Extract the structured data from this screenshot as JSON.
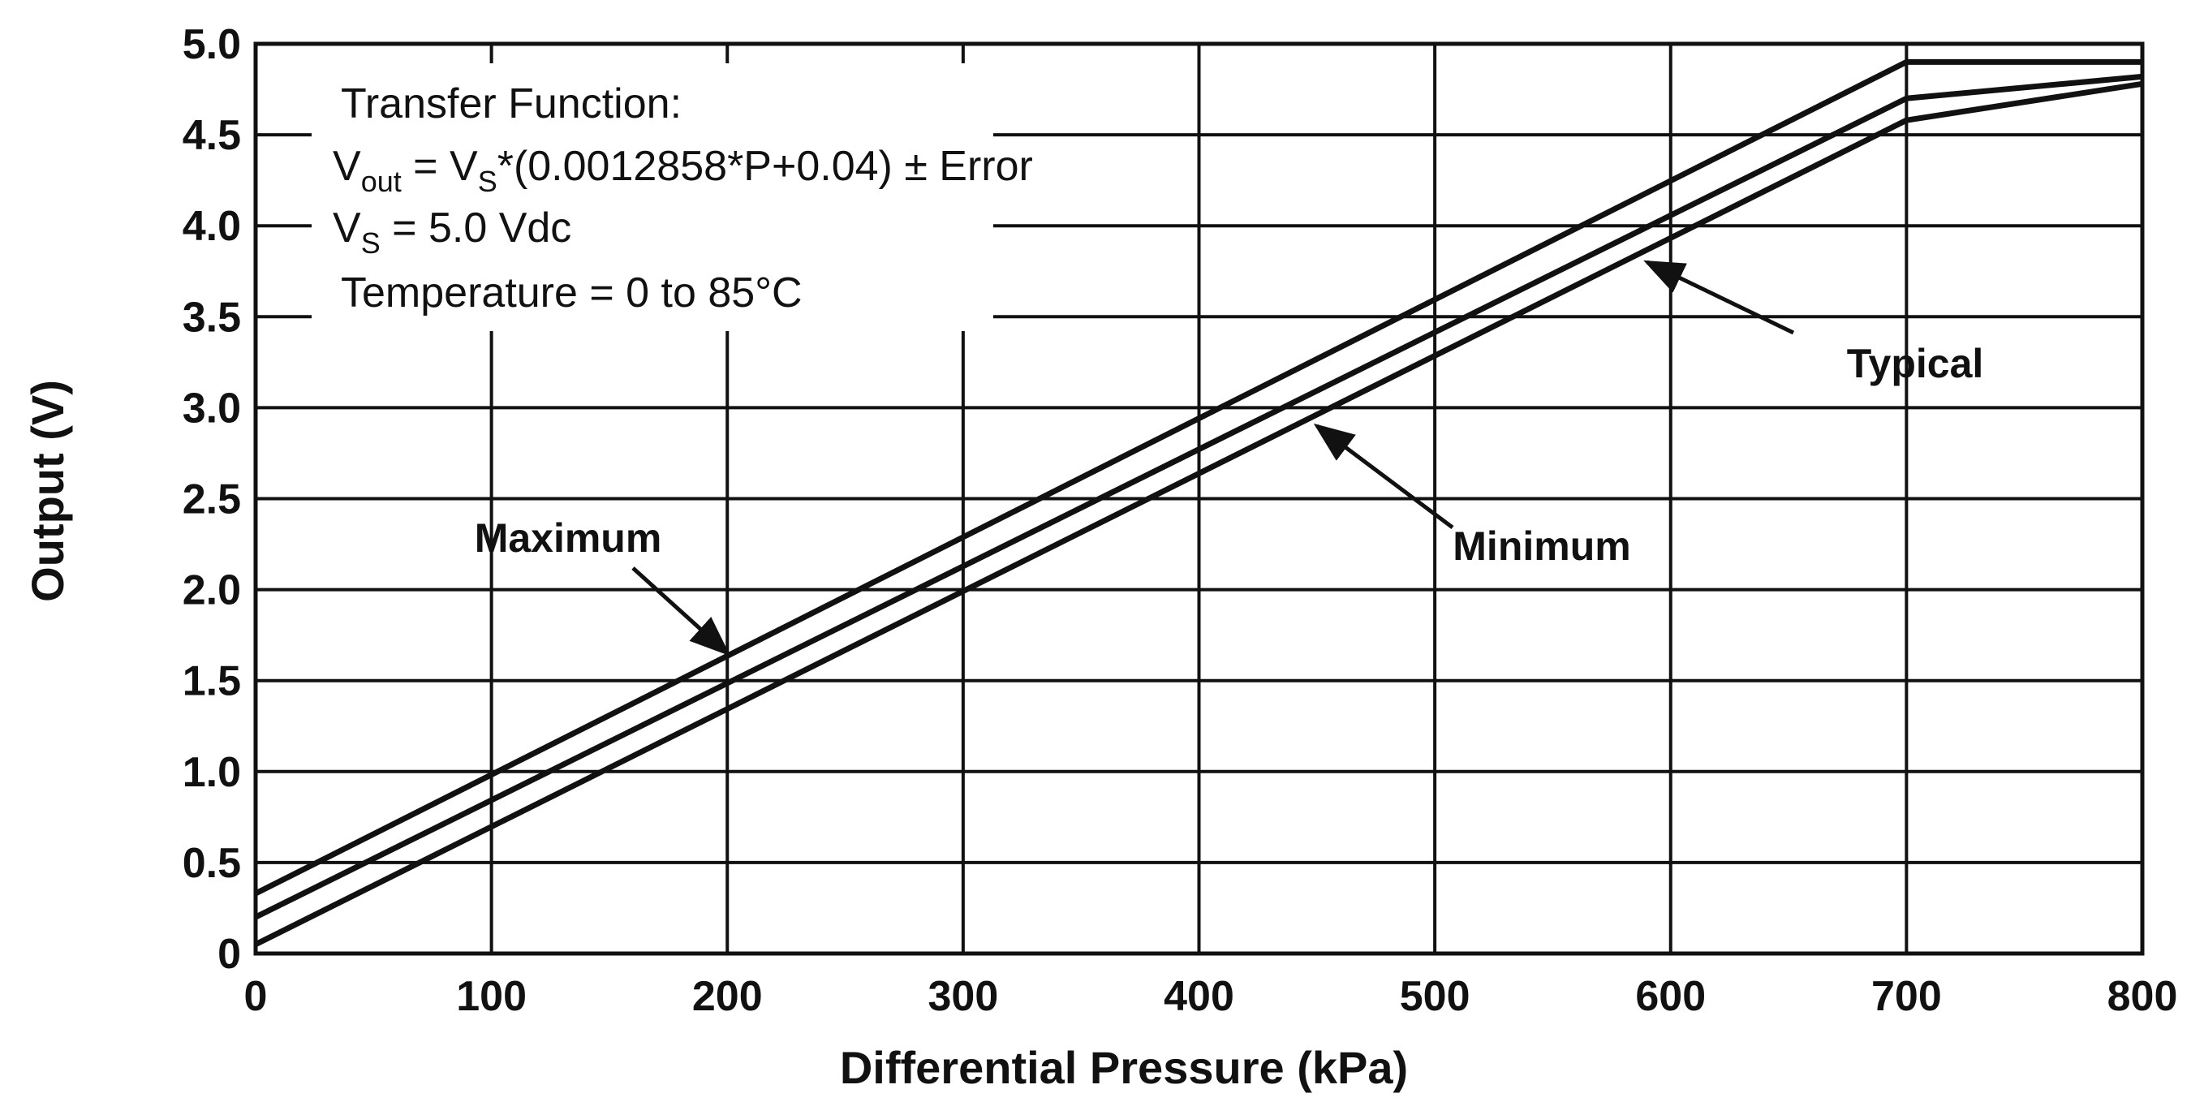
{
  "chart_data": {
    "type": "line",
    "xlabel": "Differential Pressure (kPa)",
    "ylabel": "Output (V)",
    "xlim": [
      0,
      800
    ],
    "ylim": [
      0,
      5.0
    ],
    "x_ticks": [
      0,
      100,
      200,
      300,
      400,
      500,
      600,
      700,
      800
    ],
    "x_tick_labels": [
      "0",
      "100",
      "200",
      "300",
      "400",
      "500",
      "600",
      "700",
      "800"
    ],
    "y_ticks": [
      0,
      0.5,
      1.0,
      1.5,
      2.0,
      2.5,
      3.0,
      3.5,
      4.0,
      4.5,
      5.0
    ],
    "y_tick_labels": [
      "0",
      "0.5",
      "1.0",
      "1.5",
      "2.0",
      "2.5",
      "3.0",
      "3.5",
      "4.0",
      "4.5",
      "5.0"
    ],
    "grid": true,
    "series": [
      {
        "name": "Maximum",
        "x": [
          0,
          700,
          800
        ],
        "y": [
          0.33,
          4.9,
          4.9
        ]
      },
      {
        "name": "Typical",
        "x": [
          0,
          700,
          800
        ],
        "y": [
          0.2,
          4.7,
          4.82
        ]
      },
      {
        "name": "Minimum",
        "x": [
          0,
          700,
          800
        ],
        "y": [
          0.05,
          4.58,
          4.78
        ]
      }
    ],
    "annotations": [
      {
        "label": "Maximum",
        "points_to": {
          "x": 200,
          "y": 1.65
        }
      },
      {
        "label": "Typical",
        "points_to": {
          "x": 590,
          "y": 3.8
        }
      },
      {
        "label": "Minimum",
        "points_to": {
          "x": 450,
          "y": 2.9
        }
      }
    ],
    "text_box": {
      "line1": "Transfer Function:",
      "line2_a": "V",
      "line2_sub1": "out",
      "line2_b": " = V",
      "line2_sub2": "S",
      "line2_c": "*(0.0012858*P+0.04) ± Error",
      "line3_a": "V",
      "line3_sub": "S",
      "line3_b": " = 5.0 Vdc",
      "line4": "Temperature = 0 to 85°C"
    }
  }
}
